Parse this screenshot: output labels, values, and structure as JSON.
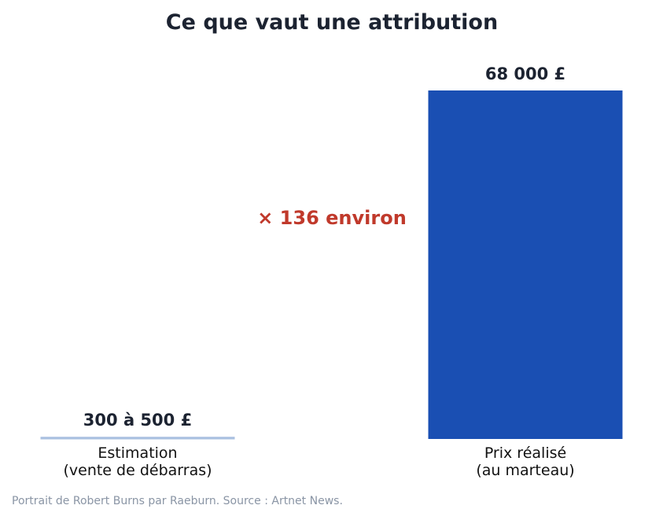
{
  "chart_data": {
    "type": "bar",
    "title": "Ce que vaut une attribution",
    "categories": [
      [
        "Estimation",
        "(vente de débarras)"
      ],
      [
        "Prix réalisé",
        "(au marteau)"
      ]
    ],
    "values": [
      500,
      68000
    ],
    "estimate_range": [
      300,
      500
    ],
    "value_labels": [
      "300 à 500 £",
      "68 000 £"
    ],
    "annotation": "× 136 environ",
    "xlabel": "",
    "ylabel": "",
    "ylim": [
      0,
      68000
    ],
    "grid": false,
    "legend": "none",
    "colors": {
      "bars": [
        "#a9c0e0",
        "#1a4fb3"
      ],
      "title": "#1c2331",
      "annotation": "#c0392b"
    }
  },
  "source": "Portrait de Robert Burns par Raeburn. Source : Artnet News."
}
